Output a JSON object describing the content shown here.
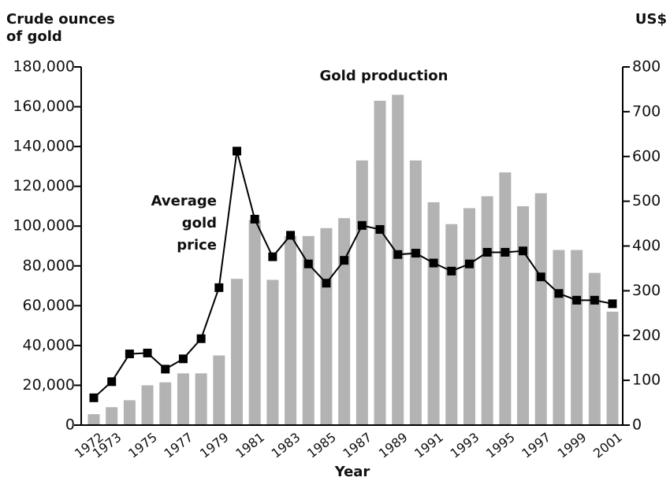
{
  "chart_data": {
    "type": "bar",
    "y_label": [
      "Crude ounces",
      "of gold"
    ],
    "y2_label": "US$",
    "x_label": "Year",
    "categories": [
      "1972",
      "1973",
      null,
      "1975",
      null,
      "1977",
      null,
      "1979",
      null,
      "1981",
      null,
      "1983",
      null,
      "1985",
      null,
      "1987",
      null,
      "1989",
      null,
      "1991",
      null,
      "1993",
      null,
      "1995",
      null,
      "1997",
      null,
      "1999",
      null,
      "2001"
    ],
    "series": [
      {
        "name": "Gold production",
        "type": "bar",
        "axis": "y",
        "color": "#b3b3b3",
        "values": [
          5500,
          9000,
          12500,
          20000,
          21500,
          26000,
          26000,
          35000,
          73500,
          103000,
          73000,
          95000,
          95000,
          99000,
          104000,
          133000,
          163000,
          166000,
          133000,
          112000,
          101000,
          109000,
          115000,
          127000,
          110000,
          116500,
          88000,
          88000,
          76500,
          57000
        ]
      },
      {
        "name": "Average gold price",
        "type": "line",
        "axis": "y2",
        "color": "#000000",
        "values": [
          61,
          97,
          159,
          161,
          125,
          148,
          193,
          307,
          612,
          460,
          376,
          424,
          360,
          317,
          368,
          446,
          437,
          381,
          384,
          362,
          344,
          360,
          386,
          386,
          389,
          331,
          294,
          279,
          279,
          271
        ]
      }
    ],
    "ylim": [
      0,
      180000
    ],
    "yticks": [
      0,
      {
        "value": 20000,
        "label": "20,000"
      },
      {
        "value": 40000,
        "label": "40,000"
      },
      {
        "value": 60000,
        "label": "60,000"
      },
      {
        "value": 80000,
        "label": "80,000"
      },
      {
        "value": 100000,
        "label": "100,000"
      },
      {
        "value": 120000,
        "label": "120,000"
      },
      {
        "value": 140000,
        "label": "140,000"
      },
      {
        "value": 160000,
        "label": "160,000"
      },
      {
        "value": 180000,
        "label": "180,000"
      }
    ],
    "y2lim": [
      0,
      800
    ],
    "y2ticks": [
      0,
      100,
      200,
      300,
      400,
      500,
      600,
      700,
      800
    ]
  }
}
